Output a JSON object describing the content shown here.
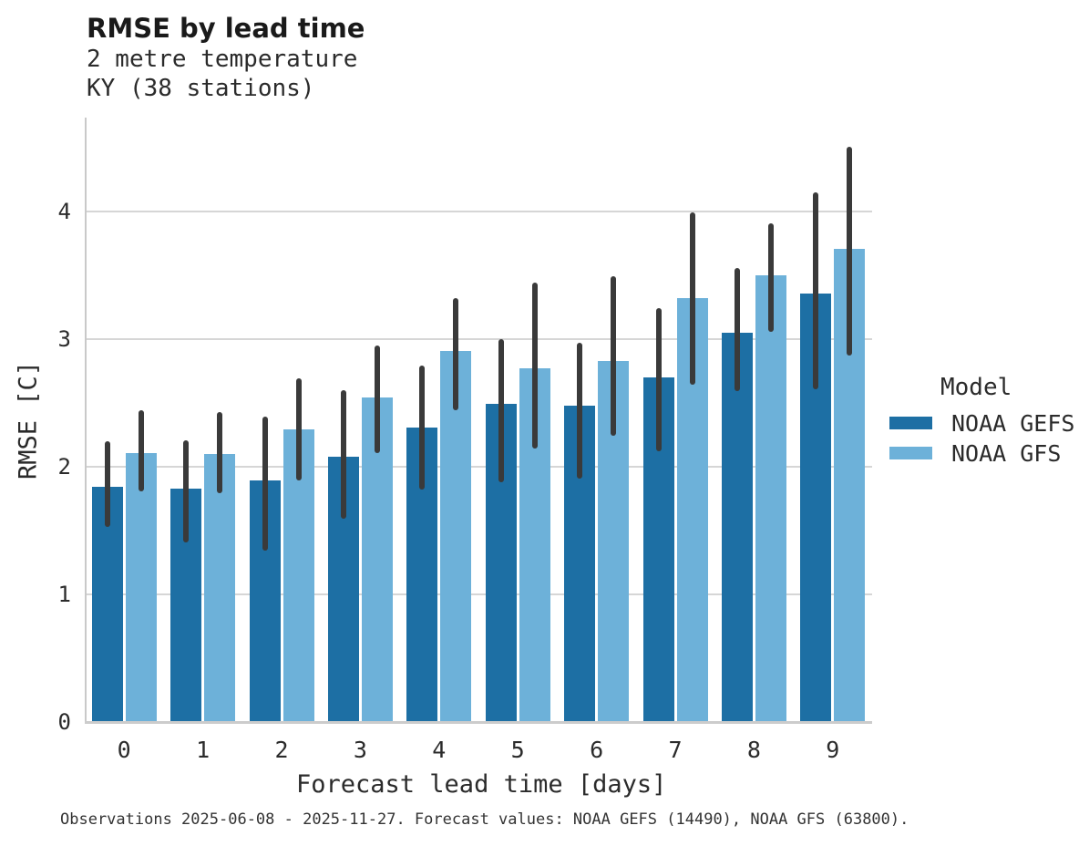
{
  "caption": "Observations 2025-06-08 - 2025-11-27. Forecast values: NOAA GEFS (14490), NOAA GFS (63800).",
  "colors": {
    "grid": "#d6d6d6",
    "spine": "#c9c9c9",
    "text": "#262626",
    "error_bar": "#3a3a3a"
  },
  "chart_data": {
    "type": "bar",
    "title": "RMSE by lead time",
    "subtitle": [
      "2 metre temperature",
      "KY (38 stations)"
    ],
    "xlabel": "Forecast lead time [days]",
    "ylabel": "RMSE [C]",
    "categories": [
      "0",
      "1",
      "2",
      "3",
      "4",
      "5",
      "6",
      "7",
      "8",
      "9"
    ],
    "yticks": [
      0,
      1,
      2,
      3,
      4
    ],
    "ylim": [
      0,
      4.75
    ],
    "grid": "horizontal",
    "legend": {
      "title": "Model",
      "position": "right"
    },
    "error_bar_color": "#3a3a3a",
    "series": [
      {
        "name": "NOAA GEFS",
        "color": "#1d6fa4",
        "values": [
          1.84,
          1.83,
          1.89,
          2.08,
          2.31,
          2.49,
          2.48,
          2.7,
          3.05,
          3.36
        ],
        "error_low": [
          1.53,
          1.41,
          1.34,
          1.59,
          1.82,
          1.88,
          1.91,
          2.12,
          2.59,
          2.61
        ],
        "error_high": [
          2.2,
          2.21,
          2.39,
          2.6,
          2.79,
          3.0,
          2.97,
          3.24,
          3.56,
          4.15
        ]
      },
      {
        "name": "NOAA GFS",
        "color": "#6db1d9",
        "values": [
          2.11,
          2.1,
          2.29,
          2.54,
          2.91,
          2.77,
          2.83,
          3.32,
          3.5,
          3.71
        ],
        "error_low": [
          1.81,
          1.79,
          1.89,
          2.11,
          2.44,
          2.14,
          2.24,
          2.64,
          3.06,
          2.87
        ],
        "error_high": [
          2.44,
          2.43,
          2.69,
          2.95,
          3.32,
          3.44,
          3.49,
          3.99,
          3.91,
          4.51
        ]
      }
    ]
  }
}
